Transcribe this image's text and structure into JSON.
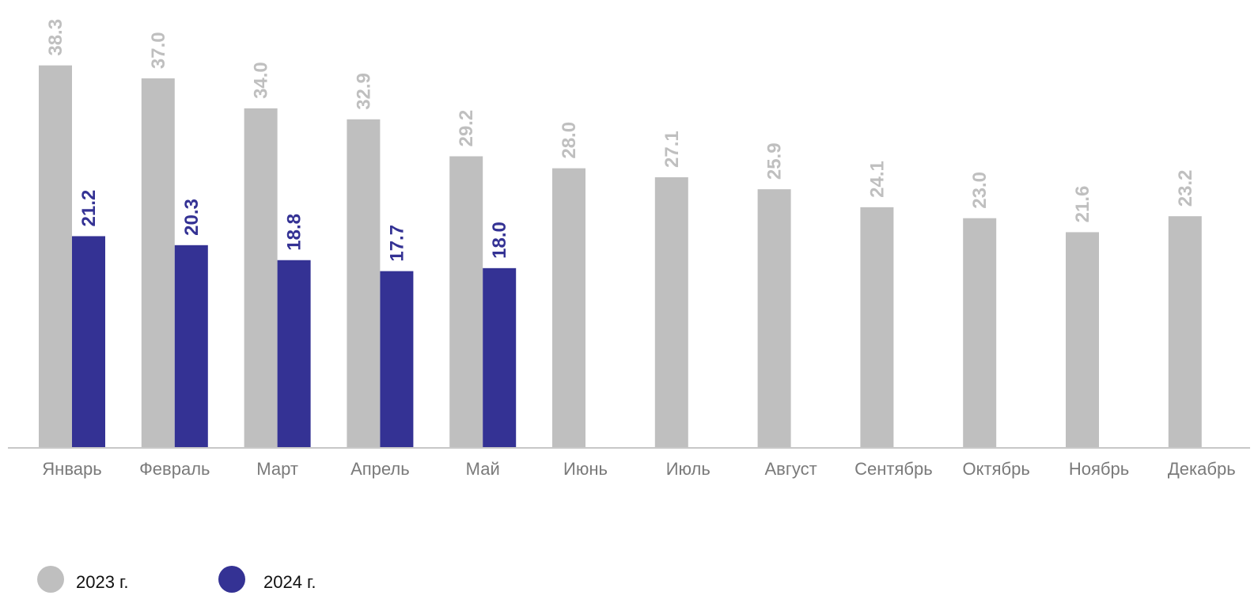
{
  "chart_data": {
    "type": "bar",
    "title": "",
    "xlabel": "",
    "ylabel": "",
    "ylim": [
      0,
      40
    ],
    "grid": false,
    "legend_position": "bottom-left",
    "categories": [
      "Январь",
      "Февраль",
      "Март",
      "Апрель",
      "Май",
      "Июнь",
      "Июль",
      "Август",
      "Сентябрь",
      "Октябрь",
      "Ноябрь",
      "Декабрь"
    ],
    "series": [
      {
        "name": "2023 г.",
        "color": "#bfbfbf",
        "values": [
          38.3,
          37.0,
          34.0,
          32.9,
          29.2,
          28.0,
          27.1,
          25.9,
          24.1,
          23.0,
          21.6,
          23.2
        ],
        "labels": [
          "38.3",
          "37.0",
          "34.0",
          "32.9",
          "29.2",
          "28.0",
          "27.1",
          "25.9",
          "24.1",
          "23.0",
          "21.6",
          "23.2"
        ]
      },
      {
        "name": "2024 г.",
        "color": "#343294",
        "values": [
          21.2,
          20.3,
          18.8,
          17.7,
          18.0,
          null,
          null,
          null,
          null,
          null,
          null,
          null
        ],
        "labels": [
          "21.2",
          "20.3",
          "18.8",
          "17.7",
          "18.0",
          "",
          "",
          "",
          "",
          "",
          "",
          ""
        ]
      }
    ]
  }
}
